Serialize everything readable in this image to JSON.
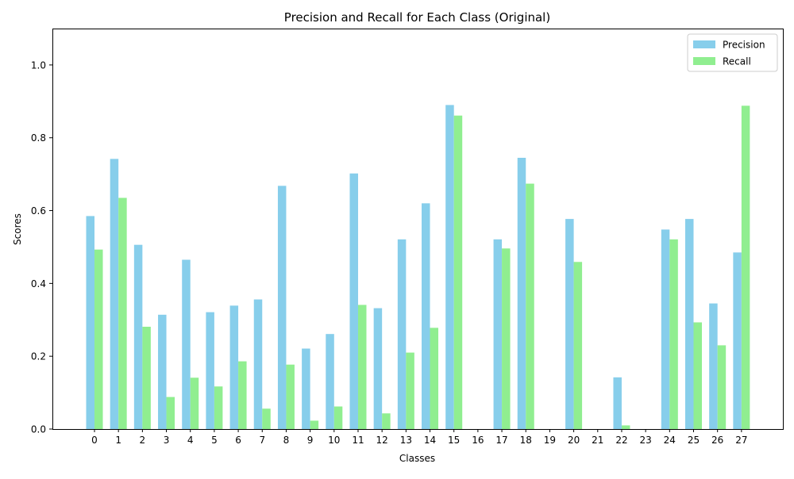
{
  "chart_data": {
    "type": "bar",
    "title": "Precision and Recall for Each Class (Original)",
    "xlabel": "Classes",
    "ylabel": "Scores",
    "ylim": [
      0,
      1.1
    ],
    "yticks": [
      "0.0",
      "0.2",
      "0.4",
      "0.6",
      "0.8",
      "1.0"
    ],
    "categories": [
      "0",
      "1",
      "2",
      "3",
      "4",
      "5",
      "6",
      "7",
      "8",
      "9",
      "10",
      "11",
      "12",
      "13",
      "14",
      "15",
      "16",
      "17",
      "18",
      "19",
      "20",
      "21",
      "22",
      "23",
      "24",
      "25",
      "26",
      "27"
    ],
    "grid": false,
    "legend_position": "top-right",
    "series": [
      {
        "name": "Precision",
        "color": "#87ceeb",
        "values": [
          0.585,
          0.742,
          0.506,
          0.314,
          0.465,
          0.321,
          0.339,
          0.356,
          0.668,
          0.221,
          0.261,
          0.702,
          0.332,
          0.521,
          0.62,
          0.89,
          0.0,
          0.521,
          0.745,
          0.0,
          0.577,
          0.0,
          0.142,
          0.0,
          0.548,
          0.577,
          0.345,
          0.485
        ]
      },
      {
        "name": "Recall",
        "color": "#90ee90",
        "values": [
          0.493,
          0.635,
          0.281,
          0.088,
          0.141,
          0.117,
          0.186,
          0.056,
          0.177,
          0.023,
          0.062,
          0.341,
          0.043,
          0.21,
          0.278,
          0.861,
          0.0,
          0.496,
          0.674,
          0.0,
          0.459,
          0.0,
          0.01,
          0.0,
          0.521,
          0.293,
          0.23,
          0.888
        ]
      }
    ]
  }
}
